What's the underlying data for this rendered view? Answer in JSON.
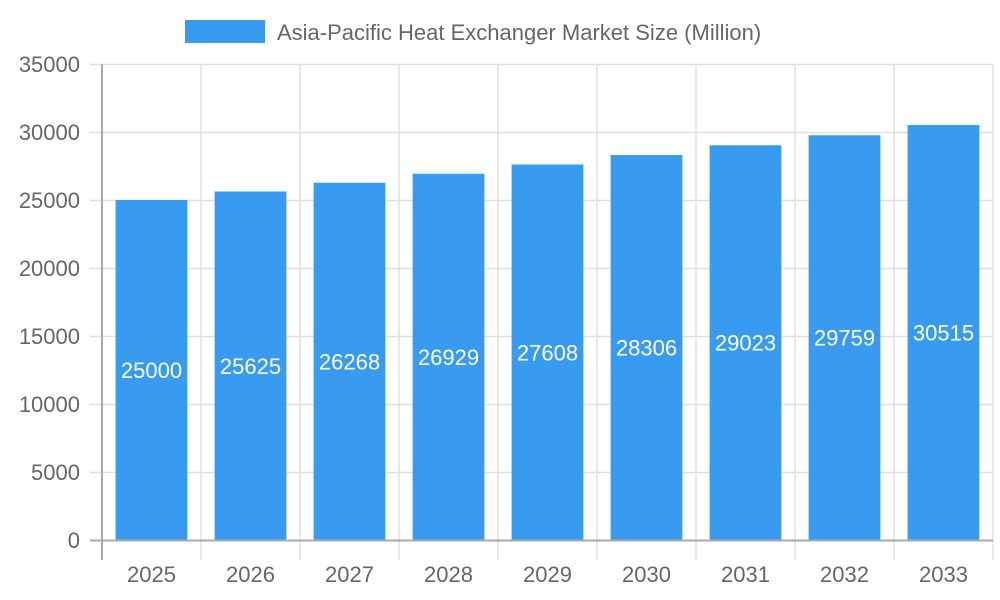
{
  "chart_data": {
    "type": "bar",
    "title": "",
    "legend": [
      {
        "label": "Asia-Pacific Heat Exchanger Market Size (Million)",
        "color": "#389BEF"
      }
    ],
    "legend_position": "top",
    "categories": [
      "2025",
      "2026",
      "2027",
      "2028",
      "2029",
      "2030",
      "2031",
      "2032",
      "2033"
    ],
    "series": [
      {
        "name": "Asia-Pacific Heat Exchanger Market Size (Million)",
        "values": [
          25000,
          25625,
          26268,
          26929,
          27608,
          28306,
          29023,
          29759,
          30515
        ],
        "color": "#389BEF"
      }
    ],
    "xlabel": "",
    "ylabel": "",
    "ylim": [
      0,
      35000
    ],
    "yticks": [
      0,
      5000,
      10000,
      15000,
      20000,
      25000,
      30000,
      35000
    ],
    "grid": true,
    "data_labels": true
  },
  "colors": {
    "bar": "#389BEF",
    "grid": "#e0e0e0",
    "axis": "#aaaaaa",
    "text": "#666666",
    "label": "#ffffff"
  }
}
